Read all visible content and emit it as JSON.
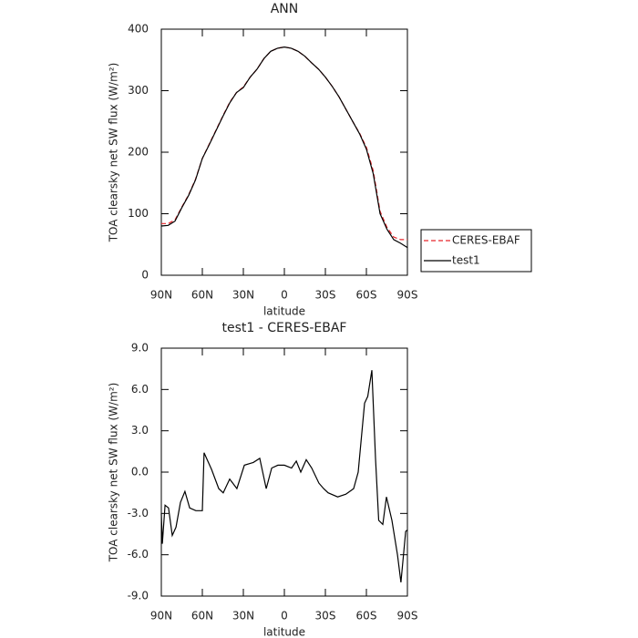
{
  "chart_data": [
    {
      "type": "line",
      "title": "ANN",
      "xlabel": "latitude",
      "ylabel": "TOA clearsky net SW flux (W/m²)",
      "x": [
        90,
        85,
        80,
        75,
        70,
        65,
        60,
        55,
        50,
        45,
        40,
        35,
        30,
        25,
        20,
        15,
        10,
        5,
        0,
        -5,
        -10,
        -15,
        -20,
        -25,
        -30,
        -35,
        -40,
        -45,
        -50,
        -55,
        -60,
        -65,
        -70,
        -75,
        -80,
        -85,
        -90
      ],
      "series": [
        {
          "name": "CERES-EBAF",
          "color": "#e8262b",
          "linestyle": "dashed",
          "values": [
            84,
            84,
            90,
            111,
            131,
            156,
            190,
            213,
            236,
            259,
            281,
            297,
            306,
            322,
            335,
            352,
            364,
            369,
            371,
            369,
            364,
            356,
            345,
            335,
            322,
            307,
            290,
            270,
            250,
            231,
            208,
            170,
            104,
            78,
            62,
            58,
            58
          ]
        },
        {
          "name": "test1",
          "color": "#000000",
          "linestyle": "solid",
          "values": [
            80,
            81,
            88,
            110,
            130,
            155,
            190,
            212,
            235,
            258,
            280,
            297,
            305,
            322,
            335,
            352,
            364,
            369,
            371,
            369,
            364,
            356,
            345,
            335,
            322,
            307,
            290,
            270,
            250,
            230,
            205,
            165,
            100,
            75,
            58,
            52,
            45
          ]
        }
      ],
      "xlim": [
        90,
        -90
      ],
      "xticks": [
        {
          "value": 90,
          "label": "90N"
        },
        {
          "value": 60,
          "label": "60N"
        },
        {
          "value": 30,
          "label": "30N"
        },
        0,
        {
          "value": -30,
          "label": "30S"
        },
        {
          "value": -60,
          "label": "60S"
        },
        {
          "value": -90,
          "label": "90S"
        }
      ],
      "ylim": [
        0,
        400
      ],
      "yticks": [
        0,
        100,
        200,
        300,
        400
      ],
      "legend": "outside-right"
    },
    {
      "type": "line",
      "title": "test1 - CERES-EBAF",
      "xlabel": "latitude",
      "ylabel": "TOA clearsky net SW flux (W/m²)",
      "x": [
        90,
        89.3,
        87.3,
        84.7,
        82,
        79.3,
        76,
        72.7,
        69.3,
        64.7,
        60,
        58.7,
        53.3,
        48,
        44.7,
        40,
        34.7,
        29.3,
        22.7,
        18,
        13.3,
        9.3,
        4.7,
        0,
        -5.3,
        -8.7,
        -12,
        -16,
        -20,
        -25.3,
        -28.7,
        -32,
        -39,
        -45,
        -50.7,
        -54,
        -58.7,
        -61,
        -64,
        -66.7,
        -69,
        -72,
        -74.7,
        -78.7,
        -82.7,
        -85.3,
        -88.7,
        -90
      ],
      "color": "#000000",
      "values": [
        -3.0,
        -5.2,
        -2.4,
        -2.6,
        -4.6,
        -4.0,
        -2.2,
        -1.4,
        -2.6,
        -2.8,
        -2.8,
        1.4,
        0.2,
        -1.2,
        -1.5,
        -0.5,
        -1.2,
        0.5,
        0.7,
        1.0,
        -1.2,
        0.3,
        0.5,
        0.5,
        0.3,
        0.8,
        0.0,
        0.9,
        0.3,
        -0.8,
        -1.2,
        -1.5,
        -1.8,
        -1.6,
        -1.2,
        0.0,
        5.0,
        5.5,
        7.4,
        1.0,
        -3.5,
        -3.8,
        -1.8,
        -3.5,
        -6.0,
        -8.0,
        -4.3,
        -4.2
      ],
      "xlim": [
        90,
        -90
      ],
      "xticks": [
        {
          "value": 90,
          "label": "90N"
        },
        {
          "value": 60,
          "label": "60N"
        },
        {
          "value": 30,
          "label": "30N"
        },
        0,
        {
          "value": -30,
          "label": "30S"
        },
        {
          "value": -60,
          "label": "60S"
        },
        {
          "value": -90,
          "label": "90S"
        }
      ],
      "ylim": [
        -9,
        9
      ],
      "yticks": [
        {
          "value": -9,
          "label": "-9.0"
        },
        {
          "value": -6,
          "label": "-6.0"
        },
        {
          "value": -3,
          "label": "-3.0"
        },
        {
          "value": 0,
          "label": "0.0"
        },
        {
          "value": 3,
          "label": "3.0"
        },
        {
          "value": 6,
          "label": "6.0"
        },
        {
          "value": 9,
          "label": "9.0"
        }
      ]
    }
  ]
}
